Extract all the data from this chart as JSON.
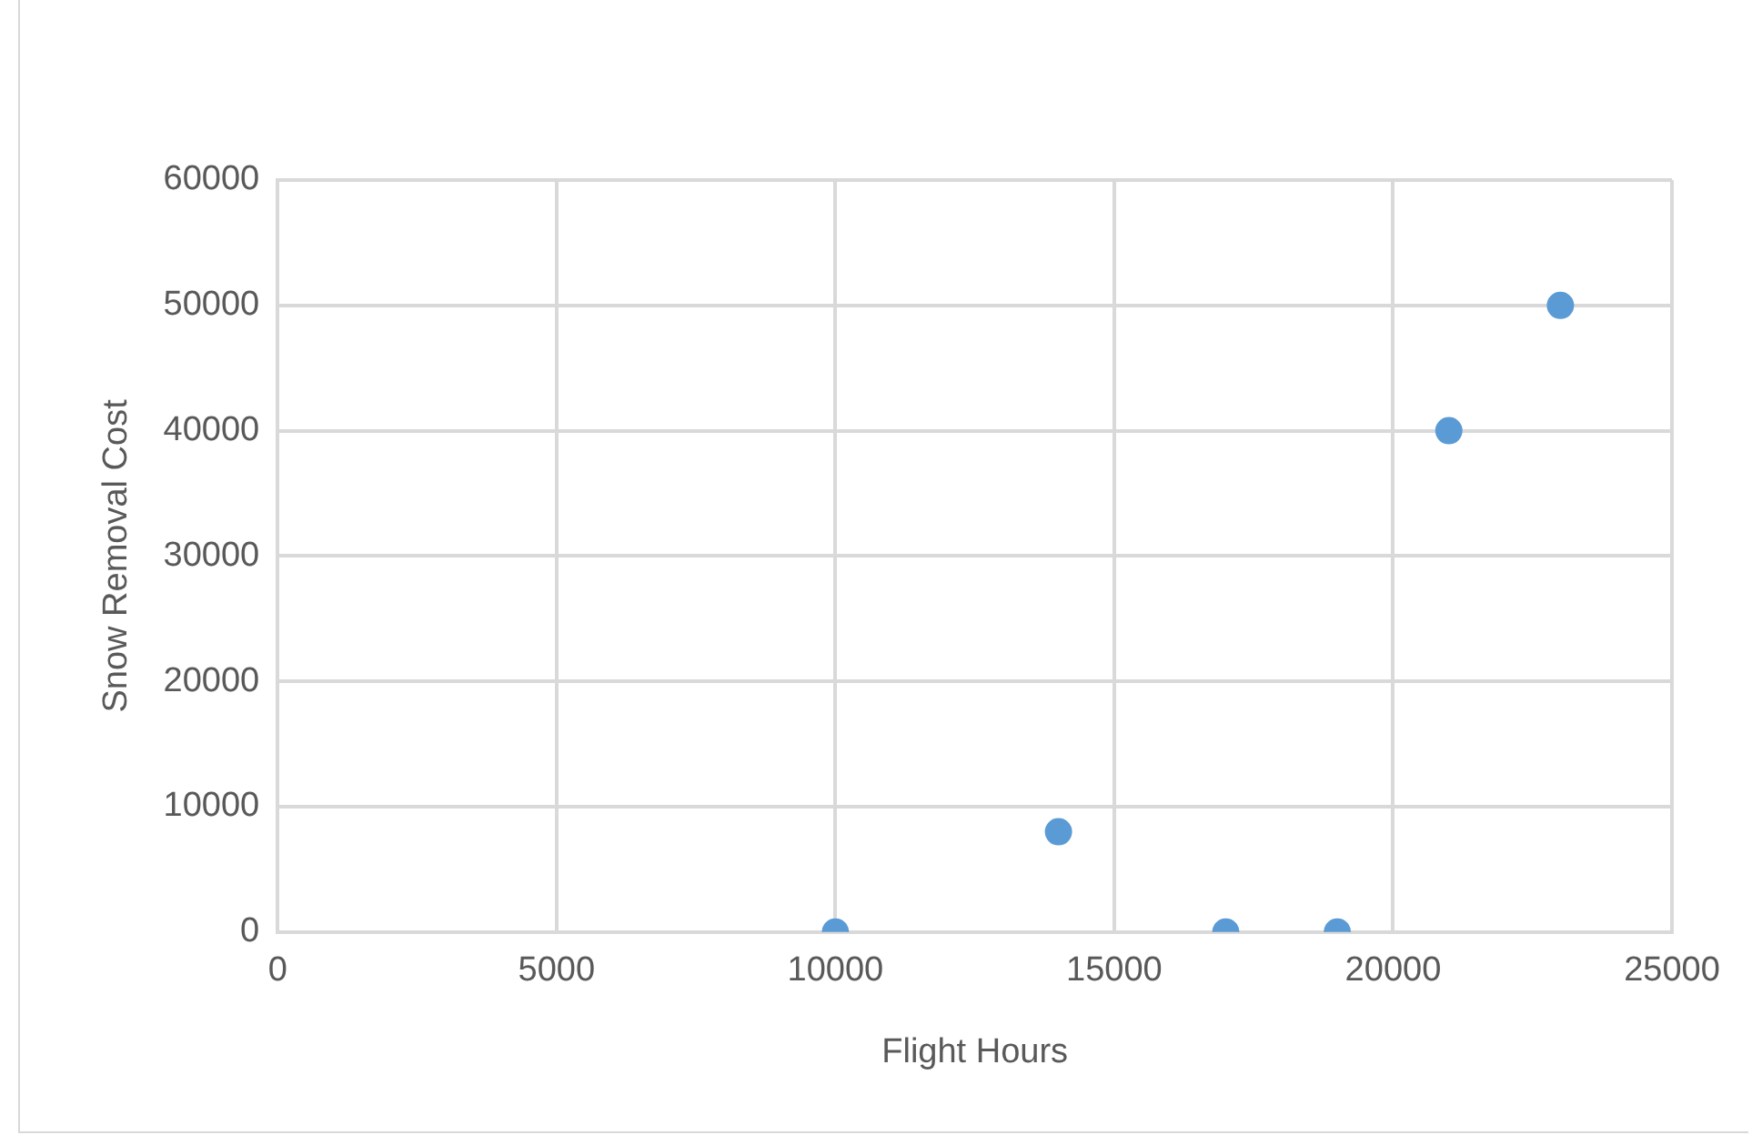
{
  "chart_data": {
    "type": "scatter",
    "xlabel": "Flight Hours",
    "ylabel": "Snow Removal Cost",
    "x": [
      10000,
      14000,
      17000,
      19000,
      21000,
      23000
    ],
    "values": [
      0,
      8000,
      0,
      0,
      40000,
      50000
    ],
    "color": "#5b9bd5",
    "marker": "circle",
    "xlim": [
      0,
      25000
    ],
    "xticks": [
      0,
      5000,
      10000,
      15000,
      20000,
      25000
    ],
    "ylim": [
      0,
      60000
    ],
    "yticks": [
      0,
      10000,
      20000,
      30000,
      40000,
      50000,
      60000
    ],
    "grid": true,
    "legend": false
  }
}
